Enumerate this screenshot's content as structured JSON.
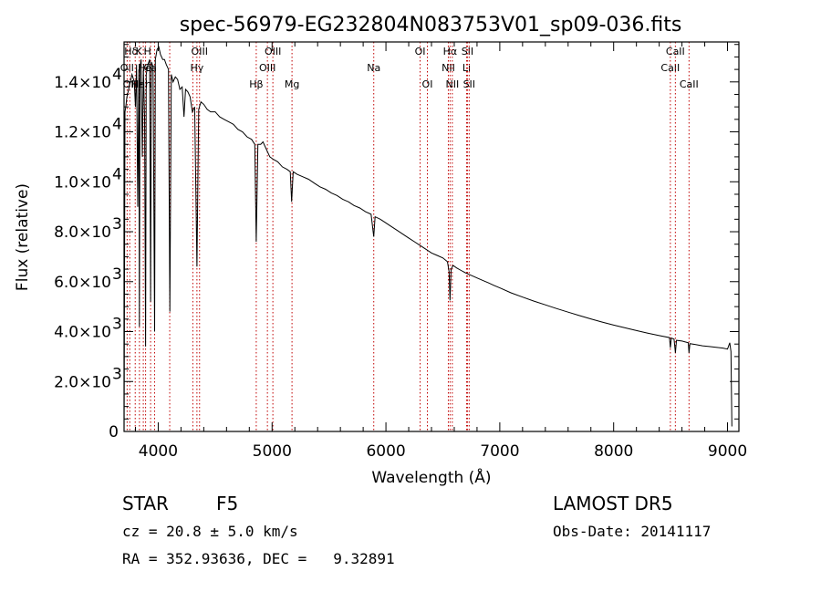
{
  "chart_data": {
    "type": "line",
    "title": "spec-56979-EG232804N083753V01_sp09-036.fits",
    "xlabel": "Wavelength (Å)",
    "ylabel": "Flux (relative)",
    "xlim": [
      3700,
      9100
    ],
    "ylim": [
      0,
      15600
    ],
    "x_ticks": [
      4000,
      5000,
      6000,
      7000,
      8000,
      9000
    ],
    "x_tick_labels": [
      "4000",
      "5000",
      "6000",
      "7000",
      "8000",
      "9000"
    ],
    "y_ticks": [
      0,
      2000,
      4000,
      6000,
      8000,
      10000,
      12000,
      14000
    ],
    "y_tick_labels": [
      {
        "mant": "0",
        "exp": ""
      },
      {
        "mant": "2.0×10",
        "exp": "3"
      },
      {
        "mant": "4.0×10",
        "exp": "3"
      },
      {
        "mant": "6.0×10",
        "exp": "3"
      },
      {
        "mant": "8.0×10",
        "exp": "3"
      },
      {
        "mant": "1.0×10",
        "exp": "4"
      },
      {
        "mant": "1.2×10",
        "exp": "4"
      },
      {
        "mant": "1.4×10",
        "exp": "4"
      }
    ],
    "series": [
      {
        "color": "#000000",
        "points": [
          [
            3700,
            0
          ],
          [
            3703,
            4600
          ],
          [
            3708,
            12800
          ],
          [
            3715,
            13000
          ],
          [
            3725,
            13400
          ],
          [
            3735,
            13600
          ],
          [
            3750,
            13900
          ],
          [
            3770,
            14300
          ],
          [
            3790,
            14000
          ],
          [
            3800,
            13000
          ],
          [
            3810,
            14700
          ],
          [
            3820,
            9000
          ],
          [
            3830,
            14500
          ],
          [
            3835,
            4200
          ],
          [
            3840,
            14600
          ],
          [
            3850,
            14900
          ],
          [
            3860,
            11000
          ],
          [
            3870,
            14500
          ],
          [
            3880,
            12600
          ],
          [
            3889,
            3400
          ],
          [
            3895,
            14300
          ],
          [
            3910,
            14700
          ],
          [
            3925,
            14900
          ],
          [
            3933,
            5200
          ],
          [
            3940,
            14800
          ],
          [
            3955,
            14600
          ],
          [
            3968,
            4000
          ],
          [
            3975,
            14900
          ],
          [
            3990,
            15300
          ],
          [
            4005,
            15400
          ],
          [
            4020,
            15100
          ],
          [
            4040,
            14900
          ],
          [
            4055,
            14900
          ],
          [
            4070,
            14700
          ],
          [
            4090,
            14500
          ],
          [
            4102,
            4800
          ],
          [
            4115,
            14300
          ],
          [
            4130,
            14000
          ],
          [
            4150,
            14200
          ],
          [
            4170,
            14100
          ],
          [
            4190,
            13700
          ],
          [
            4210,
            13800
          ],
          [
            4226,
            12600
          ],
          [
            4240,
            13700
          ],
          [
            4260,
            13600
          ],
          [
            4280,
            13400
          ],
          [
            4300,
            12800
          ],
          [
            4320,
            13000
          ],
          [
            4340,
            6600
          ],
          [
            4355,
            12900
          ],
          [
            4375,
            13200
          ],
          [
            4400,
            13100
          ],
          [
            4430,
            12900
          ],
          [
            4460,
            12800
          ],
          [
            4500,
            12800
          ],
          [
            4540,
            12600
          ],
          [
            4580,
            12500
          ],
          [
            4620,
            12400
          ],
          [
            4660,
            12300
          ],
          [
            4700,
            12100
          ],
          [
            4740,
            12000
          ],
          [
            4780,
            11800
          ],
          [
            4820,
            11700
          ],
          [
            4848,
            11500
          ],
          [
            4861,
            7600
          ],
          [
            4875,
            11500
          ],
          [
            4900,
            11500
          ],
          [
            4920,
            11600
          ],
          [
            4950,
            11300
          ],
          [
            4980,
            11000
          ],
          [
            5010,
            10900
          ],
          [
            5050,
            10800
          ],
          [
            5090,
            10600
          ],
          [
            5130,
            10500
          ],
          [
            5160,
            10400
          ],
          [
            5172,
            9200
          ],
          [
            5185,
            10400
          ],
          [
            5220,
            10300
          ],
          [
            5270,
            10200
          ],
          [
            5320,
            10100
          ],
          [
            5370,
            9950
          ],
          [
            5420,
            9800
          ],
          [
            5470,
            9700
          ],
          [
            5520,
            9550
          ],
          [
            5570,
            9450
          ],
          [
            5620,
            9300
          ],
          [
            5670,
            9200
          ],
          [
            5720,
            9050
          ],
          [
            5770,
            8950
          ],
          [
            5820,
            8800
          ],
          [
            5870,
            8700
          ],
          [
            5893,
            7800
          ],
          [
            5905,
            8600
          ],
          [
            5950,
            8500
          ],
          [
            6000,
            8350
          ],
          [
            6050,
            8200
          ],
          [
            6100,
            8050
          ],
          [
            6150,
            7900
          ],
          [
            6200,
            7750
          ],
          [
            6250,
            7600
          ],
          [
            6300,
            7450
          ],
          [
            6350,
            7300
          ],
          [
            6400,
            7150
          ],
          [
            6450,
            7050
          ],
          [
            6500,
            6950
          ],
          [
            6540,
            6800
          ],
          [
            6555,
            6400
          ],
          [
            6563,
            5250
          ],
          [
            6572,
            6500
          ],
          [
            6590,
            6650
          ],
          [
            6620,
            6550
          ],
          [
            6660,
            6450
          ],
          [
            6700,
            6350
          ],
          [
            6750,
            6250
          ],
          [
            6800,
            6150
          ],
          [
            6850,
            6050
          ],
          [
            6900,
            5950
          ],
          [
            6950,
            5850
          ],
          [
            7000,
            5750
          ],
          [
            7100,
            5550
          ],
          [
            7200,
            5380
          ],
          [
            7300,
            5220
          ],
          [
            7400,
            5070
          ],
          [
            7500,
            4920
          ],
          [
            7600,
            4780
          ],
          [
            7700,
            4640
          ],
          [
            7800,
            4510
          ],
          [
            7900,
            4380
          ],
          [
            8000,
            4260
          ],
          [
            8100,
            4150
          ],
          [
            8200,
            4040
          ],
          [
            8300,
            3940
          ],
          [
            8400,
            3840
          ],
          [
            8490,
            3760
          ],
          [
            8498,
            3350
          ],
          [
            8506,
            3740
          ],
          [
            8530,
            3700
          ],
          [
            8542,
            3150
          ],
          [
            8552,
            3650
          ],
          [
            8600,
            3620
          ],
          [
            8655,
            3550
          ],
          [
            8662,
            3150
          ],
          [
            8670,
            3520
          ],
          [
            8720,
            3480
          ],
          [
            8780,
            3430
          ],
          [
            8840,
            3400
          ],
          [
            8900,
            3370
          ],
          [
            8960,
            3340
          ],
          [
            9000,
            3300
          ],
          [
            9020,
            3550
          ],
          [
            9030,
            3200
          ],
          [
            9038,
            200
          ]
        ]
      }
    ],
    "lines": [
      {
        "x": 3727,
        "label": "OII",
        "row": 1
      },
      {
        "x": 3750,
        "label": "OII",
        "row": 2
      },
      {
        "x": 3798,
        "label": "",
        "row": 0
      },
      {
        "x": 3835,
        "label": "",
        "row": 0
      },
      {
        "x": 3869,
        "label": "",
        "row": 0
      },
      {
        "x": 3889,
        "label": "",
        "row": 0
      },
      {
        "x": 3933,
        "label": "",
        "row": 0
      },
      {
        "x": 3968,
        "label": "",
        "row": 0
      },
      {
        "x": 4101,
        "label": "",
        "row": 0
      },
      {
        "x": 4304,
        "label": "",
        "row": 0
      },
      {
        "x": 4340,
        "label": "Hγ",
        "row": 1
      },
      {
        "x": 4363,
        "label": "OIII",
        "row": 0
      },
      {
        "x": 4861,
        "label": "Hβ",
        "row": 2
      },
      {
        "x": 4959,
        "label": "OIII",
        "row": 1
      },
      {
        "x": 5007,
        "label": "OIII",
        "row": 0
      },
      {
        "x": 5175,
        "label": "Mg",
        "row": 2
      },
      {
        "x": 5893,
        "label": "Na",
        "row": 1
      },
      {
        "x": 6300,
        "label": "OI",
        "row": 0
      },
      {
        "x": 6364,
        "label": "OI",
        "row": 2
      },
      {
        "x": 6548,
        "label": "NII",
        "row": 1
      },
      {
        "x": 6563,
        "label": "Hα",
        "row": 0
      },
      {
        "x": 6583,
        "label": "NII",
        "row": 2
      },
      {
        "x": 6708,
        "label": "Li",
        "row": 1
      },
      {
        "x": 6716,
        "label": "SII",
        "row": 0
      },
      {
        "x": 6731,
        "label": "SII",
        "row": 2
      },
      {
        "x": 8498,
        "label": "CaII",
        "row": 1
      },
      {
        "x": 8542,
        "label": "CaII",
        "row": 0
      },
      {
        "x": 8662,
        "label": "CaII",
        "row": 2
      }
    ],
    "crowded_labels": [
      {
        "x": 3762,
        "row": 0,
        "text": "Hδ"
      },
      {
        "x": 3830,
        "row": 0,
        "text": "K"
      },
      {
        "x": 3905,
        "row": 0,
        "text": "H"
      },
      {
        "x": 3880,
        "row": 1,
        "text": "He"
      },
      {
        "x": 3930,
        "row": 1,
        "text": "Ca"
      },
      {
        "x": 3820,
        "row": 2,
        "text": "Hε"
      },
      {
        "x": 3880,
        "row": 2,
        "text": "Hh"
      }
    ]
  },
  "info": {
    "class_label": "STAR",
    "subclass": "F5",
    "survey": "LAMOST DR5",
    "cz": "cz = 20.8 ± 5.0 km/s",
    "obs_date": "Obs-Date: 20141117",
    "radec": "RA = 352.93636, DEC =   9.32891"
  }
}
